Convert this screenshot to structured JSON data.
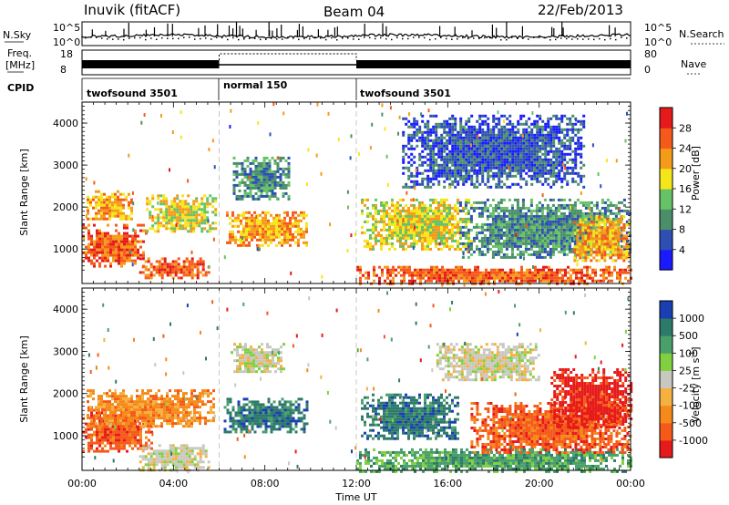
{
  "header": {
    "station": "Inuvik (fitACF)",
    "beam": "Beam 04",
    "date": "22/Feb/2013"
  },
  "nsky_panel": {
    "left_label": "N.Sky",
    "right_label": "N.Search",
    "left_ticks": [
      "10^5",
      "10^0"
    ],
    "right_ticks": [
      "10^5",
      "10^0"
    ]
  },
  "freq_panel": {
    "left_label_line1": "Freq.",
    "left_label_line2": "[MHz]",
    "right_label": "Nave",
    "left_ticks": [
      "18",
      "8"
    ],
    "right_ticks": [
      "80",
      "0"
    ]
  },
  "cpid_panel": {
    "label": "CPID",
    "segments": [
      {
        "label": "twofsound 3501",
        "start_hour": 0,
        "end_hour": 6
      },
      {
        "label": "normal 150",
        "start_hour": 6,
        "end_hour": 12
      },
      {
        "label": "twofsound 3501",
        "start_hour": 12,
        "end_hour": 24
      }
    ]
  },
  "chart_data": [
    {
      "type": "heatmap",
      "name": "power",
      "ylabel": "Slant Range [km]",
      "ylim": [
        180,
        4500
      ],
      "yticks": [
        "1000",
        "2000",
        "3000",
        "4000"
      ],
      "xlim": [
        0,
        24
      ],
      "colorbar_label": "Power [dB]",
      "colorbar_ticks": [
        "4",
        "8",
        "12",
        "16",
        "20",
        "24",
        "28"
      ],
      "colorbar_colors": [
        "#1a1aff",
        "#2d4fb3",
        "#4a8f6a",
        "#66c266",
        "#f5e61a",
        "#f59b1a",
        "#f55a1a",
        "#e61a1a"
      ],
      "blobs": [
        {
          "t0": 0.0,
          "t1": 2.8,
          "r0": 600,
          "r1": 1600,
          "level": 28
        },
        {
          "t0": 0.2,
          "t1": 2.2,
          "r0": 1700,
          "r1": 2400,
          "level": 24
        },
        {
          "t0": 2.8,
          "t1": 5.8,
          "r0": 1400,
          "r1": 2300,
          "level": 20
        },
        {
          "t0": 2.5,
          "t1": 5.5,
          "r0": 300,
          "r1": 800,
          "level": 26
        },
        {
          "t0": 6.3,
          "t1": 9.8,
          "r0": 1100,
          "r1": 1900,
          "level": 22
        },
        {
          "t0": 6.6,
          "t1": 9.0,
          "r0": 2200,
          "r1": 3200,
          "level": 10
        },
        {
          "t0": 12.2,
          "t1": 17.0,
          "r0": 1000,
          "r1": 2200,
          "level": 20
        },
        {
          "t0": 12.0,
          "t1": 24.0,
          "r0": 180,
          "r1": 600,
          "level": 26
        },
        {
          "t0": 16.5,
          "t1": 24.0,
          "r0": 800,
          "r1": 2200,
          "level": 12
        },
        {
          "t0": 14.0,
          "t1": 22.0,
          "r0": 2500,
          "r1": 4200,
          "level": 8
        },
        {
          "t0": 21.5,
          "t1": 24.0,
          "r0": 700,
          "r1": 1800,
          "level": 24
        }
      ]
    },
    {
      "type": "heatmap",
      "name": "velocity",
      "ylabel": "Slant Range [km]",
      "ylim": [
        180,
        4500
      ],
      "yticks": [
        "1000",
        "2000",
        "3000",
        "4000"
      ],
      "xlim": [
        0,
        24
      ],
      "colorbar_label": "Velocity [m s",
      "colorbar_label_sup": "-1",
      "colorbar_label_end": "]",
      "colorbar_ticks": [
        "1000",
        "500",
        "100",
        "25",
        "-25",
        "-100",
        "-500",
        "-1000"
      ],
      "colorbar_colors": [
        "#1a3fb3",
        "#2d7a6a",
        "#4aa06a",
        "#80d040",
        "#c8c8c0",
        "#f5b040",
        "#f58a1a",
        "#f55a1a",
        "#e61a1a"
      ],
      "blobs": [
        {
          "t0": 0.0,
          "t1": 3.0,
          "r0": 600,
          "r1": 1700,
          "level": -500
        },
        {
          "t0": 0.2,
          "t1": 5.8,
          "r0": 1200,
          "r1": 2100,
          "level": -100
        },
        {
          "t0": 2.5,
          "t1": 5.5,
          "r0": 200,
          "r1": 800,
          "level": 0
        },
        {
          "t0": 6.2,
          "t1": 9.8,
          "r0": 1100,
          "r1": 1900,
          "level": 500
        },
        {
          "t0": 6.5,
          "t1": 8.8,
          "r0": 2500,
          "r1": 3200,
          "level": 0
        },
        {
          "t0": 12.2,
          "t1": 16.5,
          "r0": 900,
          "r1": 2000,
          "level": 500
        },
        {
          "t0": 12.0,
          "t1": 24.0,
          "r0": 180,
          "r1": 700,
          "level": 100
        },
        {
          "t0": 17.0,
          "t1": 24.0,
          "r0": 600,
          "r1": 1800,
          "level": -500
        },
        {
          "t0": 15.5,
          "t1": 20.0,
          "r0": 2300,
          "r1": 3200,
          "level": 0
        },
        {
          "t0": 20.5,
          "t1": 24.0,
          "r0": 1200,
          "r1": 2600,
          "level": -1000
        }
      ]
    }
  ],
  "x_axis": {
    "label": "Time UT",
    "ticks": [
      "00:00",
      "04:00",
      "08:00",
      "12:00",
      "16:00",
      "20:00",
      "00:00"
    ]
  }
}
